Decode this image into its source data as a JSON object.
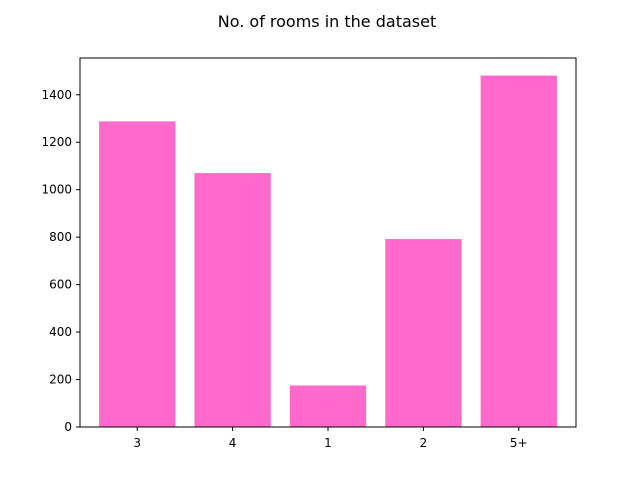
{
  "chart_data": {
    "type": "bar",
    "title": "No. of rooms in the dataset",
    "xlabel": "",
    "ylabel": "",
    "categories": [
      "3",
      "4",
      "1",
      "2",
      "5+"
    ],
    "values": [
      1288,
      1070,
      175,
      792,
      1481
    ],
    "ylim": [
      0,
      1555
    ],
    "yticks": [
      0,
      200,
      400,
      600,
      800,
      1000,
      1200,
      1400
    ],
    "bar_color": "#ff69cc",
    "grid": false,
    "legend": "none"
  }
}
